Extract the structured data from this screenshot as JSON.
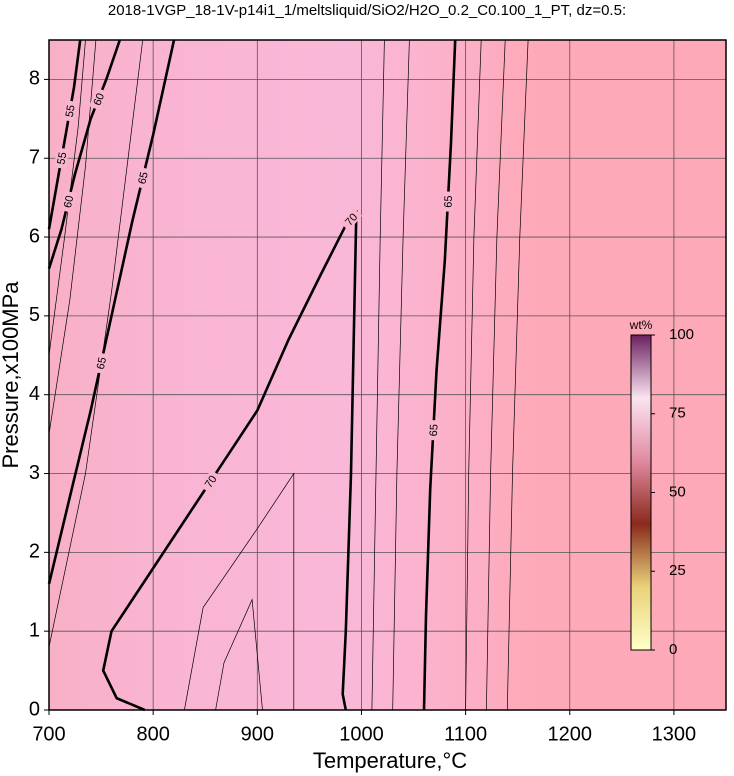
{
  "chart_data": {
    "type": "contour",
    "title": "2018-1VGP_18-1V-p14i1_1/meltsliquid/SiO2/H2O_0.2_C0.100_1_PT, dz=0.5:",
    "x_label": "Temperature,°C",
    "y_label": "Pressure,x100MPa",
    "xlim": [
      700,
      1350
    ],
    "ylim": [
      0,
      8.5
    ],
    "xticks": [
      700,
      800,
      900,
      1000,
      1100,
      1200,
      1300
    ],
    "yticks": [
      0,
      1,
      2,
      3,
      4,
      5,
      6,
      7,
      8
    ],
    "grid": true,
    "contours": [
      {
        "level": 55,
        "x": [
          700,
          708,
          716,
          724,
          730
        ],
        "y": [
          6.1,
          6.7,
          7.3,
          7.9,
          8.5
        ]
      },
      {
        "level": 60,
        "x": [
          700,
          712,
          725,
          740,
          755,
          768
        ],
        "y": [
          5.6,
          6.1,
          6.8,
          7.5,
          8.0,
          8.5
        ]
      },
      {
        "level": 65,
        "x": [
          700,
          720,
          740,
          760,
          780,
          800,
          820
        ],
        "y": [
          1.6,
          2.7,
          3.8,
          5.0,
          6.2,
          7.3,
          8.5
        ]
      },
      {
        "level": 70,
        "x": [
          792,
          765,
          752,
          760,
          800,
          840,
          870,
          900,
          930,
          960,
          985,
          995,
          993,
          990,
          985,
          982,
          985
        ],
        "y": [
          0,
          0.15,
          0.5,
          1.0,
          1.8,
          2.6,
          3.2,
          3.8,
          4.7,
          5.5,
          6.15,
          6.3,
          5.0,
          3.0,
          1.0,
          0.2,
          0
        ]
      },
      {
        "level": 65,
        "x": [
          1060,
          1062,
          1066,
          1072,
          1080,
          1086,
          1090
        ],
        "y": [
          0,
          1.2,
          2.8,
          4.3,
          5.7,
          7.2,
          8.5
        ]
      }
    ],
    "thin_contours": [
      {
        "x": [
          1010,
          1014,
          1018,
          1022
        ],
        "y": [
          0,
          3,
          6,
          8.5
        ]
      },
      {
        "x": [
          1030,
          1034,
          1040,
          1046
        ],
        "y": [
          0,
          3,
          6,
          8.5
        ]
      },
      {
        "x": [
          1100,
          1103,
          1108,
          1115
        ],
        "y": [
          0,
          3,
          6,
          8.5
        ]
      },
      {
        "x": [
          1120,
          1124,
          1130,
          1138
        ],
        "y": [
          0,
          3,
          6,
          8.5
        ]
      },
      {
        "x": [
          1140,
          1145,
          1152,
          1160
        ],
        "y": [
          0,
          3,
          6,
          8.5
        ]
      },
      {
        "x": [
          830,
          848,
          900,
          935,
          935
        ],
        "y": [
          0,
          1.3,
          2.3,
          3.0,
          0
        ]
      },
      {
        "x": [
          860,
          868,
          895,
          905
        ],
        "y": [
          0,
          0.6,
          1.4,
          0
        ]
      },
      {
        "x": [
          700,
          720,
          735,
          745
        ],
        "y": [
          3.5,
          5.2,
          6.9,
          8.5
        ]
      },
      {
        "x": [
          700,
          715,
          728,
          735
        ],
        "y": [
          4.5,
          6.0,
          7.4,
          8.5
        ]
      },
      {
        "x": [
          700,
          735,
          760,
          790
        ],
        "y": [
          0.8,
          3.0,
          5.3,
          8.5
        ]
      }
    ],
    "colorbar": {
      "label": "wt%",
      "lim": [
        0,
        100
      ],
      "ticks": [
        0,
        25,
        50,
        75,
        100
      ],
      "colors": [
        "#ffffc8",
        "#e9d27a",
        "#8a2a1c",
        "#e08aa0",
        "#fbe4f0",
        "#6b2060"
      ]
    }
  }
}
